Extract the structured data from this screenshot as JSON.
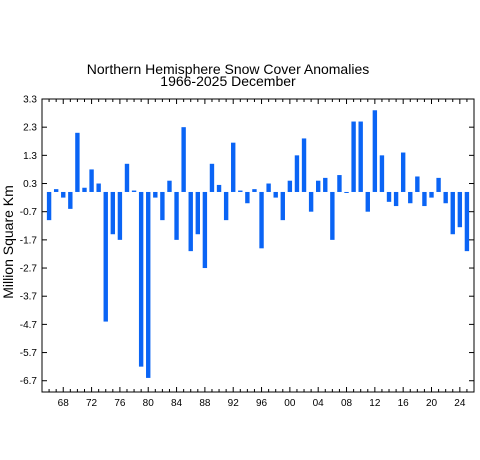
{
  "chart_data": {
    "type": "bar",
    "title": "Northern Hemisphere Snow Cover Anomalies",
    "subtitle": "1966-2025 December",
    "xlabel": "",
    "ylabel": "Million Square Km",
    "x_start_year": 1966,
    "x_end_year": 2025,
    "xlim": [
      1965,
      2026
    ],
    "ylim": [
      -7.1,
      3.3
    ],
    "grid": false,
    "bar_color": "#0a64f5",
    "y_ticks": [
      3.3,
      2.3,
      1.3,
      0.3,
      -0.7,
      -1.7,
      -2.7,
      -3.7,
      -4.7,
      -5.7,
      -6.7
    ],
    "y_tick_labels": [
      "3.3",
      "2.3",
      "1.3",
      "0.3",
      "-0.7",
      "-1.7",
      "-2.7",
      "-3.7",
      "-4.7",
      "-5.7",
      "-6.7"
    ],
    "x_tick_years": [
      1968,
      1972,
      1976,
      1980,
      1984,
      1988,
      1992,
      1996,
      2000,
      2004,
      2008,
      2012,
      2016,
      2020,
      2024
    ],
    "x_tick_labels": [
      "68",
      "72",
      "76",
      "80",
      "84",
      "88",
      "92",
      "96",
      "00",
      "04",
      "08",
      "12",
      "16",
      "20",
      "24"
    ],
    "years": [
      1966,
      1967,
      1968,
      1969,
      1970,
      1971,
      1972,
      1973,
      1974,
      1975,
      1976,
      1977,
      1978,
      1979,
      1980,
      1981,
      1982,
      1983,
      1984,
      1985,
      1986,
      1987,
      1988,
      1989,
      1990,
      1991,
      1992,
      1993,
      1994,
      1995,
      1996,
      1997,
      1998,
      1999,
      2000,
      2001,
      2002,
      2003,
      2004,
      2005,
      2006,
      2007,
      2008,
      2009,
      2010,
      2011,
      2012,
      2013,
      2014,
      2015,
      2016,
      2017,
      2018,
      2019,
      2020,
      2021,
      2022,
      2023,
      2024,
      2025
    ],
    "values": [
      -1.0,
      0.1,
      -0.2,
      -0.6,
      2.1,
      0.15,
      0.8,
      0.3,
      -4.6,
      -1.5,
      -1.7,
      1.0,
      0.05,
      -6.2,
      -6.6,
      -0.2,
      -1.0,
      0.4,
      -1.7,
      2.3,
      -2.1,
      -1.5,
      -2.7,
      1.0,
      0.25,
      -1.0,
      1.75,
      0.05,
      -0.4,
      0.1,
      -2.0,
      0.3,
      -0.2,
      -1.0,
      0.4,
      1.3,
      1.9,
      -0.7,
      0.4,
      0.5,
      -1.7,
      0.6,
      0.0,
      2.5,
      2.5,
      -0.7,
      2.9,
      1.3,
      -0.35,
      -0.5,
      1.4,
      -0.4,
      0.55,
      -0.5,
      -0.2,
      0.5,
      -0.4,
      -1.5,
      -1.25,
      -2.1
    ]
  }
}
